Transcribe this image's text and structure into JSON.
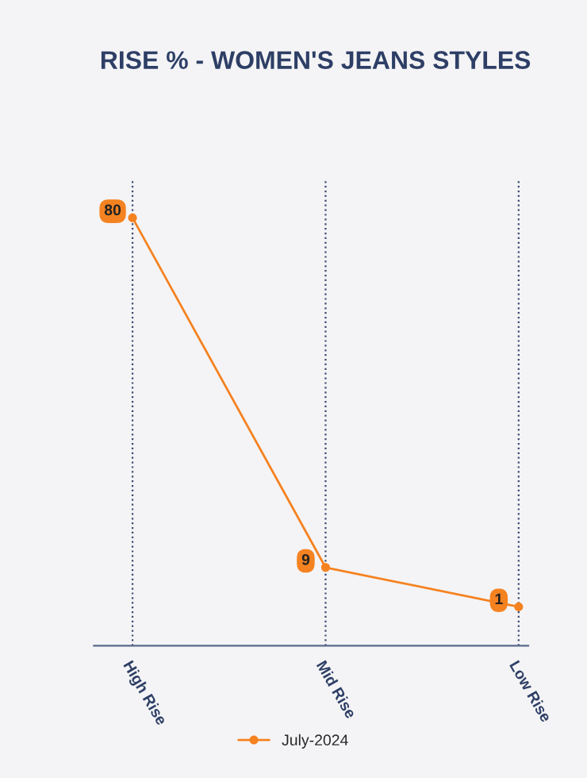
{
  "chart_data": {
    "type": "line",
    "title": "RISE % - WOMEN'S JEANS STYLES",
    "categories": [
      "High Rise",
      "Mid Rise",
      "Low Rise"
    ],
    "series": [
      {
        "name": "July-2024",
        "color": "#f58220",
        "values": [
          80,
          9,
          1
        ]
      }
    ],
    "data_labels": true,
    "grid": "x",
    "legend": "bottom",
    "marker": "circle",
    "line_style": "solid"
  }
}
